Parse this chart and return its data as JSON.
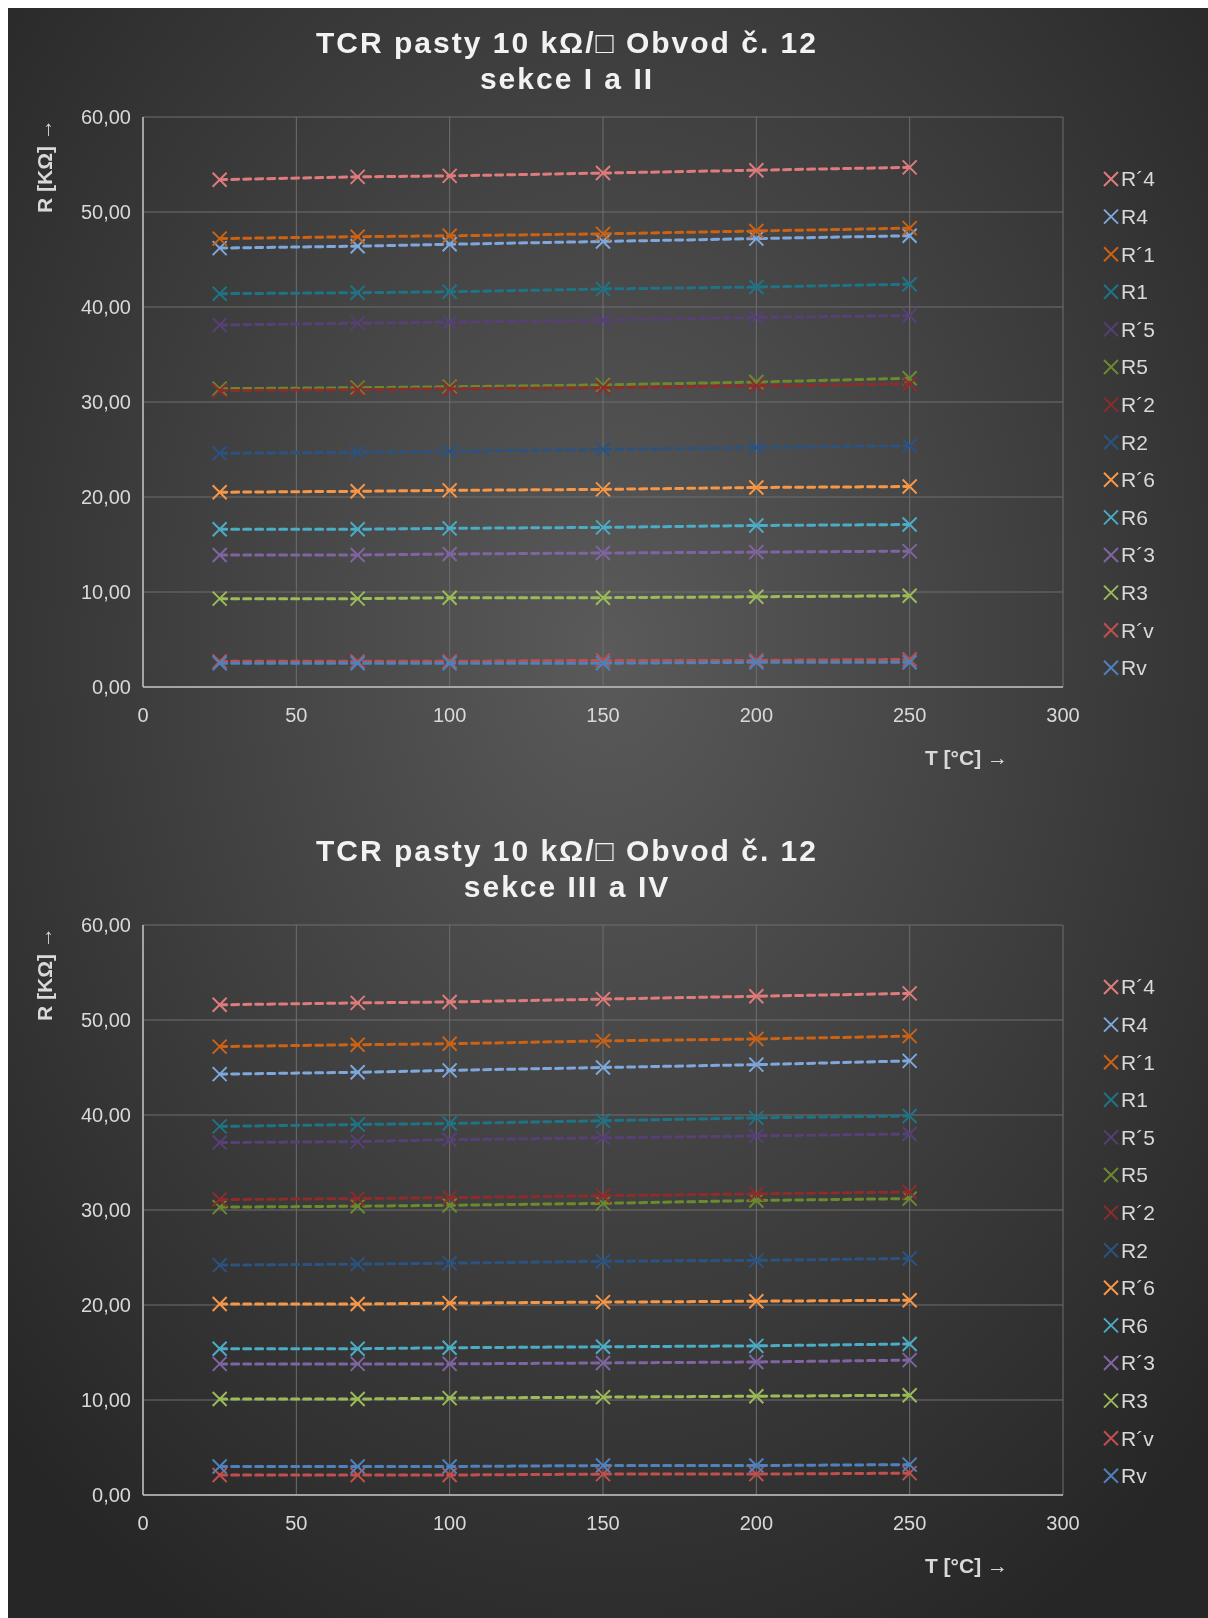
{
  "chart_data": [
    {
      "type": "line",
      "title": "TCR pasty 10 kΩ/□ Obvod č. 12",
      "subtitle": "sekce I a II",
      "xlabel": "T [°C] →",
      "ylabel": "R [KΩ] →",
      "x": [
        25,
        70,
        100,
        150,
        200,
        250
      ],
      "xlim": [
        0,
        300
      ],
      "xticks": [
        0,
        50,
        100,
        150,
        200,
        250,
        300
      ],
      "ylim": [
        0,
        60
      ],
      "yticks": [
        {
          "value": 0,
          "label": "0,00"
        },
        {
          "value": 10,
          "label": "10,00"
        },
        {
          "value": 20,
          "label": "20,00"
        },
        {
          "value": 30,
          "label": "30,00"
        },
        {
          "value": 40,
          "label": "40,00"
        },
        {
          "value": 50,
          "label": "50,00"
        },
        {
          "value": 60,
          "label": "60,00"
        }
      ],
      "grid": true,
      "legend": "right",
      "marker": "cross",
      "line_style": "dashed",
      "series": [
        {
          "name": "R´4",
          "color": "#e07b7b",
          "values": [
            53.4,
            53.7,
            53.8,
            54.1,
            54.4,
            54.7
          ]
        },
        {
          "name": "R4",
          "color": "#7ea7dc",
          "values": [
            46.2,
            46.4,
            46.6,
            46.9,
            47.2,
            47.5
          ]
        },
        {
          "name": "R´1",
          "color": "#cc6214",
          "values": [
            47.2,
            47.4,
            47.5,
            47.7,
            48.0,
            48.3
          ]
        },
        {
          "name": "R1",
          "color": "#1f7386",
          "values": [
            41.4,
            41.5,
            41.6,
            41.9,
            42.1,
            42.4
          ]
        },
        {
          "name": "R´5",
          "color": "#573f78",
          "values": [
            38.1,
            38.3,
            38.4,
            38.6,
            38.9,
            39.1
          ]
        },
        {
          "name": "R5",
          "color": "#6a8a2e",
          "values": [
            31.4,
            31.5,
            31.6,
            31.8,
            32.1,
            32.5
          ]
        },
        {
          "name": "R´2",
          "color": "#8e2b2b",
          "values": [
            31.2,
            31.3,
            31.4,
            31.5,
            31.7,
            31.9
          ]
        },
        {
          "name": "R2",
          "color": "#2a5382",
          "values": [
            24.6,
            24.7,
            24.8,
            25.0,
            25.2,
            25.4
          ]
        },
        {
          "name": "R´6",
          "color": "#f79646",
          "values": [
            20.5,
            20.6,
            20.7,
            20.8,
            21.0,
            21.1
          ]
        },
        {
          "name": "R6",
          "color": "#4bacc6",
          "values": [
            16.6,
            16.6,
            16.7,
            16.8,
            17.0,
            17.1
          ]
        },
        {
          "name": "R´3",
          "color": "#8064a2",
          "values": [
            13.9,
            13.9,
            14.0,
            14.1,
            14.2,
            14.3
          ]
        },
        {
          "name": "R3",
          "color": "#9bbb59",
          "values": [
            9.3,
            9.3,
            9.4,
            9.4,
            9.5,
            9.6
          ]
        },
        {
          "name": "R´v",
          "color": "#c0504d",
          "values": [
            2.7,
            2.7,
            2.7,
            2.8,
            2.8,
            2.9
          ]
        },
        {
          "name": "Rv",
          "color": "#4f81bd",
          "values": [
            2.5,
            2.5,
            2.5,
            2.5,
            2.6,
            2.6
          ]
        }
      ]
    },
    {
      "type": "line",
      "title": "TCR pasty 10 kΩ/□ Obvod č. 12",
      "subtitle": "sekce III a IV",
      "xlabel": "T [°C] →",
      "ylabel": "R [KΩ] →",
      "x": [
        25,
        70,
        100,
        150,
        200,
        250
      ],
      "xlim": [
        0,
        300
      ],
      "xticks": [
        0,
        50,
        100,
        150,
        200,
        250,
        300
      ],
      "ylim": [
        0,
        60
      ],
      "yticks": [
        {
          "value": 0,
          "label": "0,00"
        },
        {
          "value": 10,
          "label": "10,00"
        },
        {
          "value": 20,
          "label": "20,00"
        },
        {
          "value": 30,
          "label": "30,00"
        },
        {
          "value": 40,
          "label": "40,00"
        },
        {
          "value": 50,
          "label": "50,00"
        },
        {
          "value": 60,
          "label": "60,00"
        }
      ],
      "grid": true,
      "legend": "right",
      "marker": "cross",
      "line_style": "dashed",
      "series": [
        {
          "name": "R´4",
          "color": "#e07b7b",
          "values": [
            51.6,
            51.8,
            51.9,
            52.2,
            52.5,
            52.8
          ]
        },
        {
          "name": "R4",
          "color": "#7ea7dc",
          "values": [
            44.3,
            44.5,
            44.7,
            45.0,
            45.3,
            45.7
          ]
        },
        {
          "name": "R´1",
          "color": "#cc6214",
          "values": [
            47.2,
            47.4,
            47.5,
            47.8,
            48.0,
            48.3
          ]
        },
        {
          "name": "R1",
          "color": "#1f7386",
          "values": [
            38.8,
            39.0,
            39.1,
            39.4,
            39.7,
            39.9
          ]
        },
        {
          "name": "R´5",
          "color": "#573f78",
          "values": [
            37.1,
            37.2,
            37.4,
            37.6,
            37.8,
            38.0
          ]
        },
        {
          "name": "R5",
          "color": "#6a8a2e",
          "values": [
            30.3,
            30.4,
            30.5,
            30.7,
            31.0,
            31.2
          ]
        },
        {
          "name": "R´2",
          "color": "#8e2b2b",
          "values": [
            31.1,
            31.2,
            31.3,
            31.5,
            31.7,
            31.9
          ]
        },
        {
          "name": "R2",
          "color": "#2a5382",
          "values": [
            24.2,
            24.3,
            24.4,
            24.6,
            24.7,
            24.9
          ]
        },
        {
          "name": "R´6",
          "color": "#f79646",
          "values": [
            20.1,
            20.1,
            20.2,
            20.3,
            20.4,
            20.5
          ]
        },
        {
          "name": "R6",
          "color": "#4bacc6",
          "values": [
            15.4,
            15.4,
            15.5,
            15.6,
            15.7,
            15.9
          ]
        },
        {
          "name": "R´3",
          "color": "#8064a2",
          "values": [
            13.8,
            13.8,
            13.8,
            13.9,
            14.0,
            14.2
          ]
        },
        {
          "name": "R3",
          "color": "#9bbb59",
          "values": [
            10.1,
            10.1,
            10.2,
            10.3,
            10.4,
            10.5
          ]
        },
        {
          "name": "R´v",
          "color": "#c0504d",
          "values": [
            2.1,
            2.1,
            2.1,
            2.2,
            2.2,
            2.3
          ]
        },
        {
          "name": "Rv",
          "color": "#4f81bd",
          "values": [
            3.0,
            3.0,
            3.0,
            3.1,
            3.1,
            3.2
          ]
        }
      ]
    }
  ]
}
